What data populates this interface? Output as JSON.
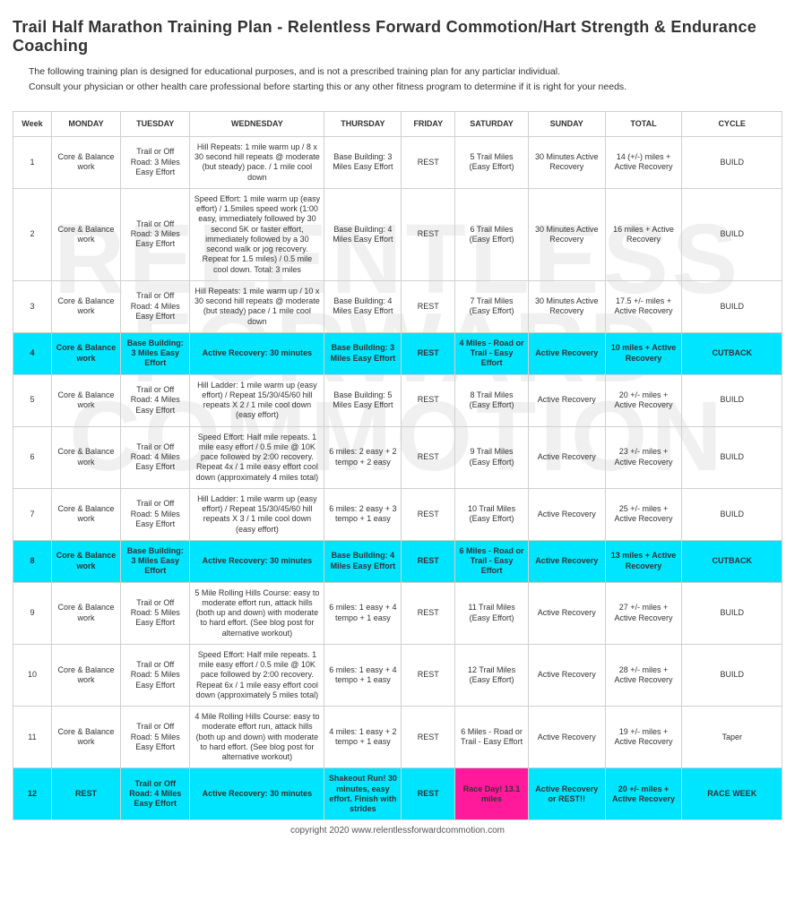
{
  "title": "Trail Half Marathon Training Plan - Relentless Forward Commotion/Hart Strength & Endurance Coaching",
  "intro_line1": "The following training plan is designed for educational purposes, and is not a prescribed training plan for any particlar individual.",
  "intro_line2": "Consult your physician or other health care professional before starting this or any other fitness program to determine if it is right for your needs.",
  "footer": "copyright 2020  www.relentlessforwardcommotion.com",
  "columns": [
    "Week",
    "MONDAY",
    "TUESDAY",
    "WEDNESDAY",
    "THURSDAY",
    "FRIDAY",
    "SATURDAY",
    "SUNDAY",
    "TOTAL",
    "CYCLE"
  ],
  "colors": {
    "cutback_bg": "#00e5ff",
    "raceday_bg": "#ff1a9c",
    "border": "#d0d0d0",
    "text": "#333333",
    "page_bg": "#ffffff"
  },
  "typography": {
    "title_fontsize_pt": 14,
    "body_fontsize_pt": 7,
    "header_weight": 700
  },
  "rows": [
    {
      "week": "1",
      "style": "normal",
      "mon": "Core & Balance work",
      "tue": "Trail or Off Road: 3 Miles Easy Effort",
      "wed": "Hill Repeats:  1 mile warm up / 8 x 30 second hill repeats @ moderate (but steady) pace. / 1 mile cool down",
      "thu": "Base Building: 3 Miles Easy Effort",
      "fri": "REST",
      "sat": "5 Trail Miles (Easy Effort)",
      "sun": "30 Minutes Active Recovery",
      "tot": "14 (+/-) miles + Active Recovery",
      "cyc": "BUILD"
    },
    {
      "week": "2",
      "style": "normal",
      "mon": "Core & Balance work",
      "tue": "Trail or Off Road: 3 Miles Easy Effort",
      "wed": "Speed Effort: 1 mile warm up (easy effort) / 1.5miles speed work (1:00 easy, immediately followed by 30 second 5K or faster effort, immediately followed by a 30 second walk or jog recovery.  Repeat for 1.5 miles) / 0.5 mile cool down.  Total: 3 miles",
      "thu": "Base Building: 4 Miles Easy Effort",
      "fri": "REST",
      "sat": "6 Trail Miles (Easy Effort)",
      "sun": "30 Minutes Active Recovery",
      "tot": "16 miles + Active Recovery",
      "cyc": "BUILD"
    },
    {
      "week": "3",
      "style": "normal",
      "mon": "Core & Balance work",
      "tue": "Trail or Off Road: 4 Miles Easy Effort",
      "wed": "Hill Repeats:  1 mile warm up / 10 x 30 second hill repeats @ moderate (but steady) pace / 1 mile cool down",
      "thu": "Base Building: 4 Miles Easy Effort",
      "fri": "REST",
      "sat": "7 Trail Miles (Easy Effort)",
      "sun": "30 Minutes Active Recovery",
      "tot": "17.5 +/- miles + Active Recovery",
      "cyc": "BUILD"
    },
    {
      "week": "4",
      "style": "cutback",
      "mon": "Core & Balance work",
      "tue": "Base Building: 3 Miles Easy Effort",
      "wed": "Active Recovery: 30 minutes",
      "thu": "Base Building: 3 Miles Easy Effort",
      "fri": "REST",
      "sat": "4 Miles - Road or Trail - Easy Effort",
      "sun": "Active Recovery",
      "tot": "10 miles + Active Recovery",
      "cyc": "CUTBACK"
    },
    {
      "week": "5",
      "style": "normal",
      "mon": "Core & Balance work",
      "tue": "Trail or Off Road: 4 Miles Easy Effort",
      "wed": "Hill Ladder:  1 mile warm up (easy effort) / Repeat 15/30/45/60 hill repeats X 2 / 1 mile cool down (easy effort)",
      "thu": "Base Building: 5 Miles Easy Effort",
      "fri": "REST",
      "sat": "8  Trail Miles (Easy Effort)",
      "sun": "Active Recovery",
      "tot": "20 +/- miles + Active Recovery",
      "cyc": "BUILD"
    },
    {
      "week": "6",
      "style": "normal",
      "mon": "Core & Balance work",
      "tue": "Trail or Off Road: 4 Miles Easy Effort",
      "wed": "Speed Effort: Half mile repeats. 1 mile easy effort / 0.5 mile @ 10K pace followed by 2:00 recovery.  Repeat 4x / 1 mile easy effort cool down (approximately 4 miles total)",
      "thu": "6 miles: 2 easy + 2 tempo + 2 easy",
      "fri": "REST",
      "sat": "9  Trail Miles (Easy Effort)",
      "sun": "Active Recovery",
      "tot": "23 +/- miles + Active Recovery",
      "cyc": "BUILD"
    },
    {
      "week": "7",
      "style": "normal",
      "mon": "Core & Balance work",
      "tue": "Trail or Off Road: 5 Miles Easy Effort",
      "wed": "Hill Ladder:  1 mile warm up (easy effort) / Repeat 15/30/45/60 hill repeats X 3 / 1 mile cool down (easy effort)",
      "thu": "6 miles: 2 easy + 3 tempo + 1 easy",
      "fri": "REST",
      "sat": "10 Trail Miles (Easy Effort)",
      "sun": "Active Recovery",
      "tot": "25 +/- miles + Active Recovery",
      "cyc": "BUILD"
    },
    {
      "week": "8",
      "style": "cutback",
      "mon": "Core & Balance work",
      "tue": "Base Building: 3 Miles Easy Effort",
      "wed": "Active Recovery: 30 minutes",
      "thu": "Base Building: 4 Miles Easy Effort",
      "fri": "REST",
      "sat": "6 Miles -  Road or Trail - Easy Effort",
      "sun": "Active Recovery",
      "tot": "13 miles + Active Recovery",
      "cyc": "CUTBACK"
    },
    {
      "week": "9",
      "style": "normal",
      "mon": "Core & Balance work",
      "tue": "Trail or Off Road: 5 Miles Easy Effort",
      "wed": "5 Mile Rolling Hills Course: easy to moderate effort run, attack hills (both up and down) with moderate to hard effort.  (See blog post for alternative workout)",
      "thu": "6 miles: 1 easy + 4 tempo + 1 easy",
      "fri": "REST",
      "sat": "11 Trail Miles (Easy Effort)",
      "sun": "Active Recovery",
      "tot": "27 +/- miles + Active Recovery",
      "cyc": "BUILD"
    },
    {
      "week": "10",
      "style": "normal",
      "mon": "Core & Balance work",
      "tue": "Trail or Off Road: 5 Miles Easy Effort",
      "wed": "Speed Effort: Half mile repeats. 1 mile easy effort / 0.5 mile @ 10K pace followed by 2:00 recovery.  Repeat 6x / 1 mile easy effort cool down (approximately 5 miles total)",
      "thu": "6 miles: 1 easy + 4 tempo + 1 easy",
      "fri": "REST",
      "sat": "12  Trail Miles (Easy Effort)",
      "sun": "Active Recovery",
      "tot": "28 +/- miles + Active Recovery",
      "cyc": "BUILD"
    },
    {
      "week": "11",
      "style": "normal",
      "mon": "Core & Balance work",
      "tue": "Trail or Off Road: 5 Miles Easy Effort",
      "wed": "4 Mile Rolling Hills Course: easy to moderate effort run, attack hills (both up and down) with moderate to hard effort.  (See blog post for alternative workout)",
      "thu": "4 miles: 1 easy + 2 tempo + 1 easy",
      "fri": "REST",
      "sat": "6 Miles - Road or Trail - Easy Effort",
      "sun": "Active Recovery",
      "tot": "19 +/- miles + Active Recovery",
      "cyc": "Taper"
    },
    {
      "week": "12",
      "style": "raceweek",
      "mon": "REST",
      "tue": "Trail or Off Road: 4 Miles Easy Effort",
      "wed": "Active Recovery: 30 minutes",
      "thu": "Shakeout Run! 30 minutes, easy effort. Finish with strides",
      "fri": "REST",
      "sat": "Race Day!  13.1 miles",
      "sun": "Active Recovery or REST!!",
      "tot": "20 +/- miles + Active Recovery",
      "cyc": "RACE WEEK"
    }
  ]
}
